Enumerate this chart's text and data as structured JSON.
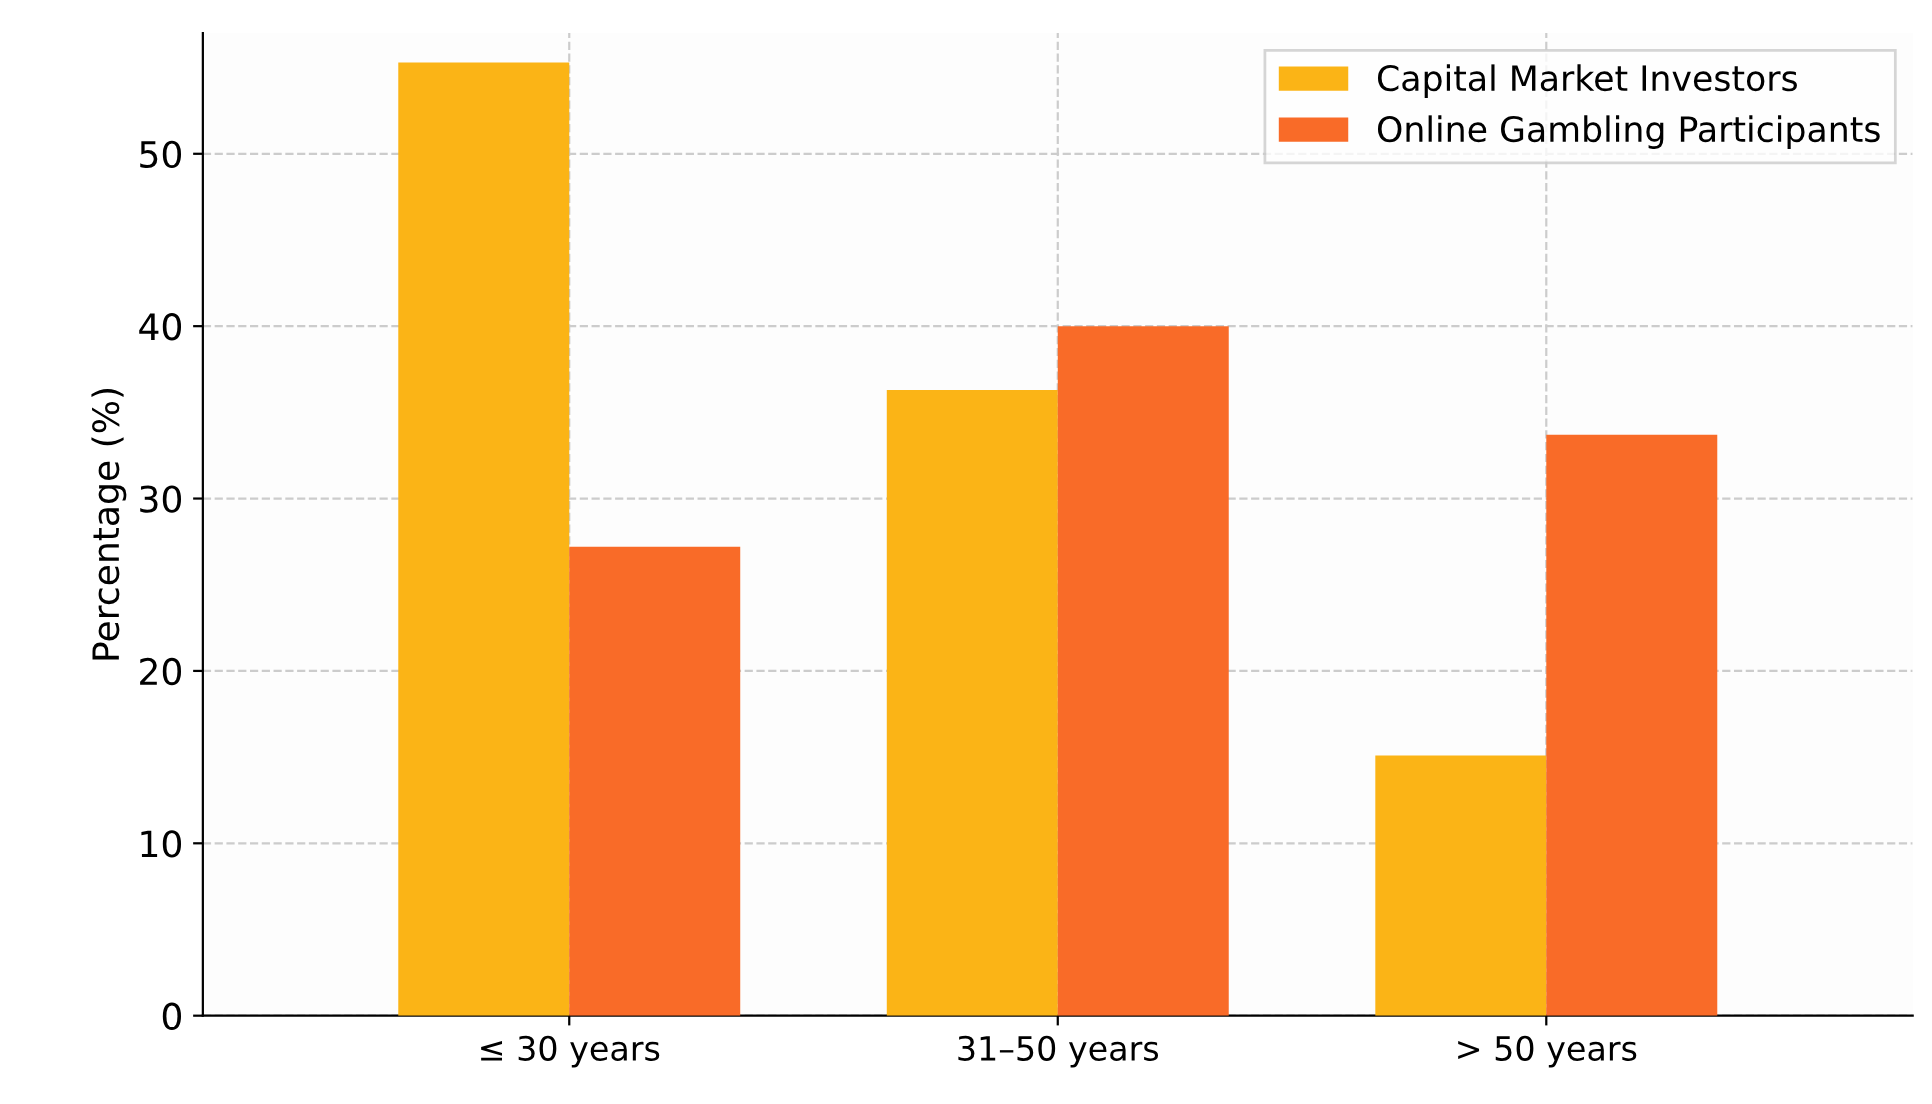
{
  "chart_data": {
    "type": "bar",
    "ylabel": "Percentage (%)",
    "categories": [
      "≤ 30 years",
      "31–50 years",
      "> 50 years"
    ],
    "series": [
      {
        "name": "Capital Market Investors",
        "color": "#fbb416",
        "values": [
          55.3,
          36.3,
          15.1
        ]
      },
      {
        "name": "Online Gambling Participants",
        "color": "#f96b28",
        "values": [
          27.2,
          40,
          33.7
        ]
      }
    ],
    "ylim": [
      0,
      57
    ],
    "yticks": [
      0,
      10,
      20,
      30,
      40,
      50
    ],
    "grid": true,
    "legend": "top right"
  }
}
